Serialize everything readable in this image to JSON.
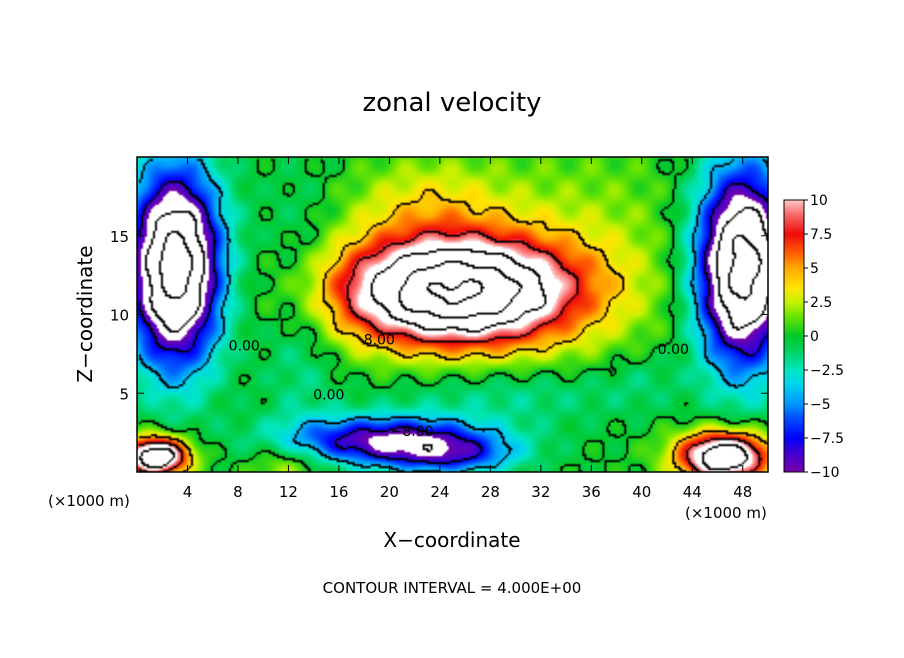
{
  "chart_data": {
    "type": "heatmap",
    "title": "zonal velocity",
    "xlabel": "X−coordinate",
    "ylabel": "Z−coordinate",
    "x_unit": "(×1000 m)",
    "z_unit": "(×1000 m)",
    "footer": "CONTOUR INTERVAL = 4.000E+00",
    "xlim": [
      0,
      50
    ],
    "ylim": [
      0,
      20
    ],
    "x_ticks": [
      4,
      8,
      12,
      16,
      20,
      24,
      28,
      32,
      36,
      40,
      44,
      48
    ],
    "y_ticks": [
      5,
      10,
      15
    ],
    "colorbar": {
      "min": -10,
      "max": 10,
      "ticks": [
        10,
        7.5,
        5,
        2.5,
        0,
        -2.5,
        -5,
        -7.5,
        -10
      ],
      "tick_labels": [
        "10",
        "7.5",
        "5",
        "2.5",
        "0",
        "−2.5",
        "−5",
        "−7.5",
        "−10"
      ]
    },
    "contour_labels": [
      {
        "text": "0.00",
        "x": 8.5,
        "z": 7.7
      },
      {
        "text": "8.00",
        "x": 19.2,
        "z": 8.1
      },
      {
        "text": "0.00",
        "x": 15.2,
        "z": 4.6
      },
      {
        "text": "−8.00",
        "x": 21.8,
        "z": 2.3
      },
      {
        "text": "0.00",
        "x": 42.5,
        "z": 7.5
      }
    ],
    "blobs": [
      {
        "x": 25,
        "z": 11.5,
        "sx": 9,
        "sz": 3.3,
        "a": 20
      },
      {
        "x": 23,
        "z": 17,
        "sx": 6,
        "sz": 3,
        "a": 3
      },
      {
        "x": 35,
        "z": 14,
        "sx": 9,
        "sz": 7,
        "a": 2
      },
      {
        "x": 3,
        "z": 13,
        "sx": 3.5,
        "sz": 6,
        "a": -18
      },
      {
        "x": 48,
        "z": 13,
        "sx": 3.5,
        "sz": 6,
        "a": -18
      },
      {
        "x": 13,
        "z": 10,
        "sx": 3,
        "sz": 8,
        "a": -2
      },
      {
        "x": 20,
        "z": 2,
        "sx": 8,
        "sz": 1.5,
        "a": -10
      },
      {
        "x": 25,
        "z": 1,
        "sx": 5,
        "sz": 1.2,
        "a": -5
      },
      {
        "x": 1.5,
        "z": 1,
        "sx": 2.5,
        "sz": 1.2,
        "a": 16
      },
      {
        "x": 46.5,
        "z": 1,
        "sx": 3.5,
        "sz": 1.5,
        "a": 16
      },
      {
        "x": 12,
        "z": 0.5,
        "sx": 3,
        "sz": 1.5,
        "a": 3
      },
      {
        "x": 30,
        "z": 5,
        "sx": 10,
        "sz": 2,
        "a": -2
      },
      {
        "x": 40,
        "z": 6,
        "sx": 3,
        "sz": 2,
        "a": -1
      }
    ]
  }
}
